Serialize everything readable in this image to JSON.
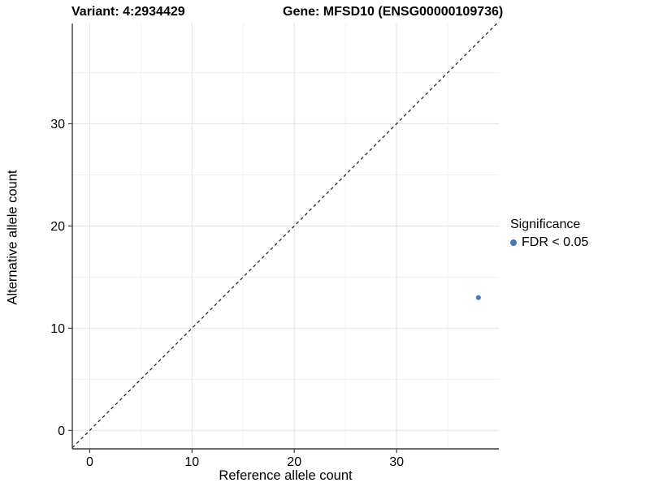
{
  "titles": {
    "variant": "Variant: 4:2934429",
    "gene": "Gene: MFSD10 (ENSG00000109736)"
  },
  "chart_data": {
    "type": "scatter",
    "xlabel": "Reference allele count",
    "ylabel": "Alternative allele count",
    "xlim": [
      -1.7,
      40.0
    ],
    "ylim": [
      -1.8,
      39.8
    ],
    "xticks": [
      0,
      10,
      20,
      30
    ],
    "yticks": [
      0,
      10,
      20,
      30
    ],
    "grid_interval": 5,
    "grid_max": 35,
    "points": [
      {
        "x": 38,
        "y": 13,
        "series": "FDR < 0.05"
      }
    ],
    "identity_line": {
      "slope": 1,
      "intercept": 0,
      "style": "dashed"
    },
    "legend": {
      "title": "Significance",
      "position": "right",
      "items": [
        {
          "label": "FDR < 0.05",
          "color": "#4575b4"
        }
      ]
    },
    "colors": {
      "point": "#4575b4",
      "axis_line": "#3c3c3c",
      "major_grid": "#e4e4e4",
      "minor_grid": "#efefef",
      "dashed_line": "#1a1a1a",
      "background": "#ffffff"
    }
  }
}
